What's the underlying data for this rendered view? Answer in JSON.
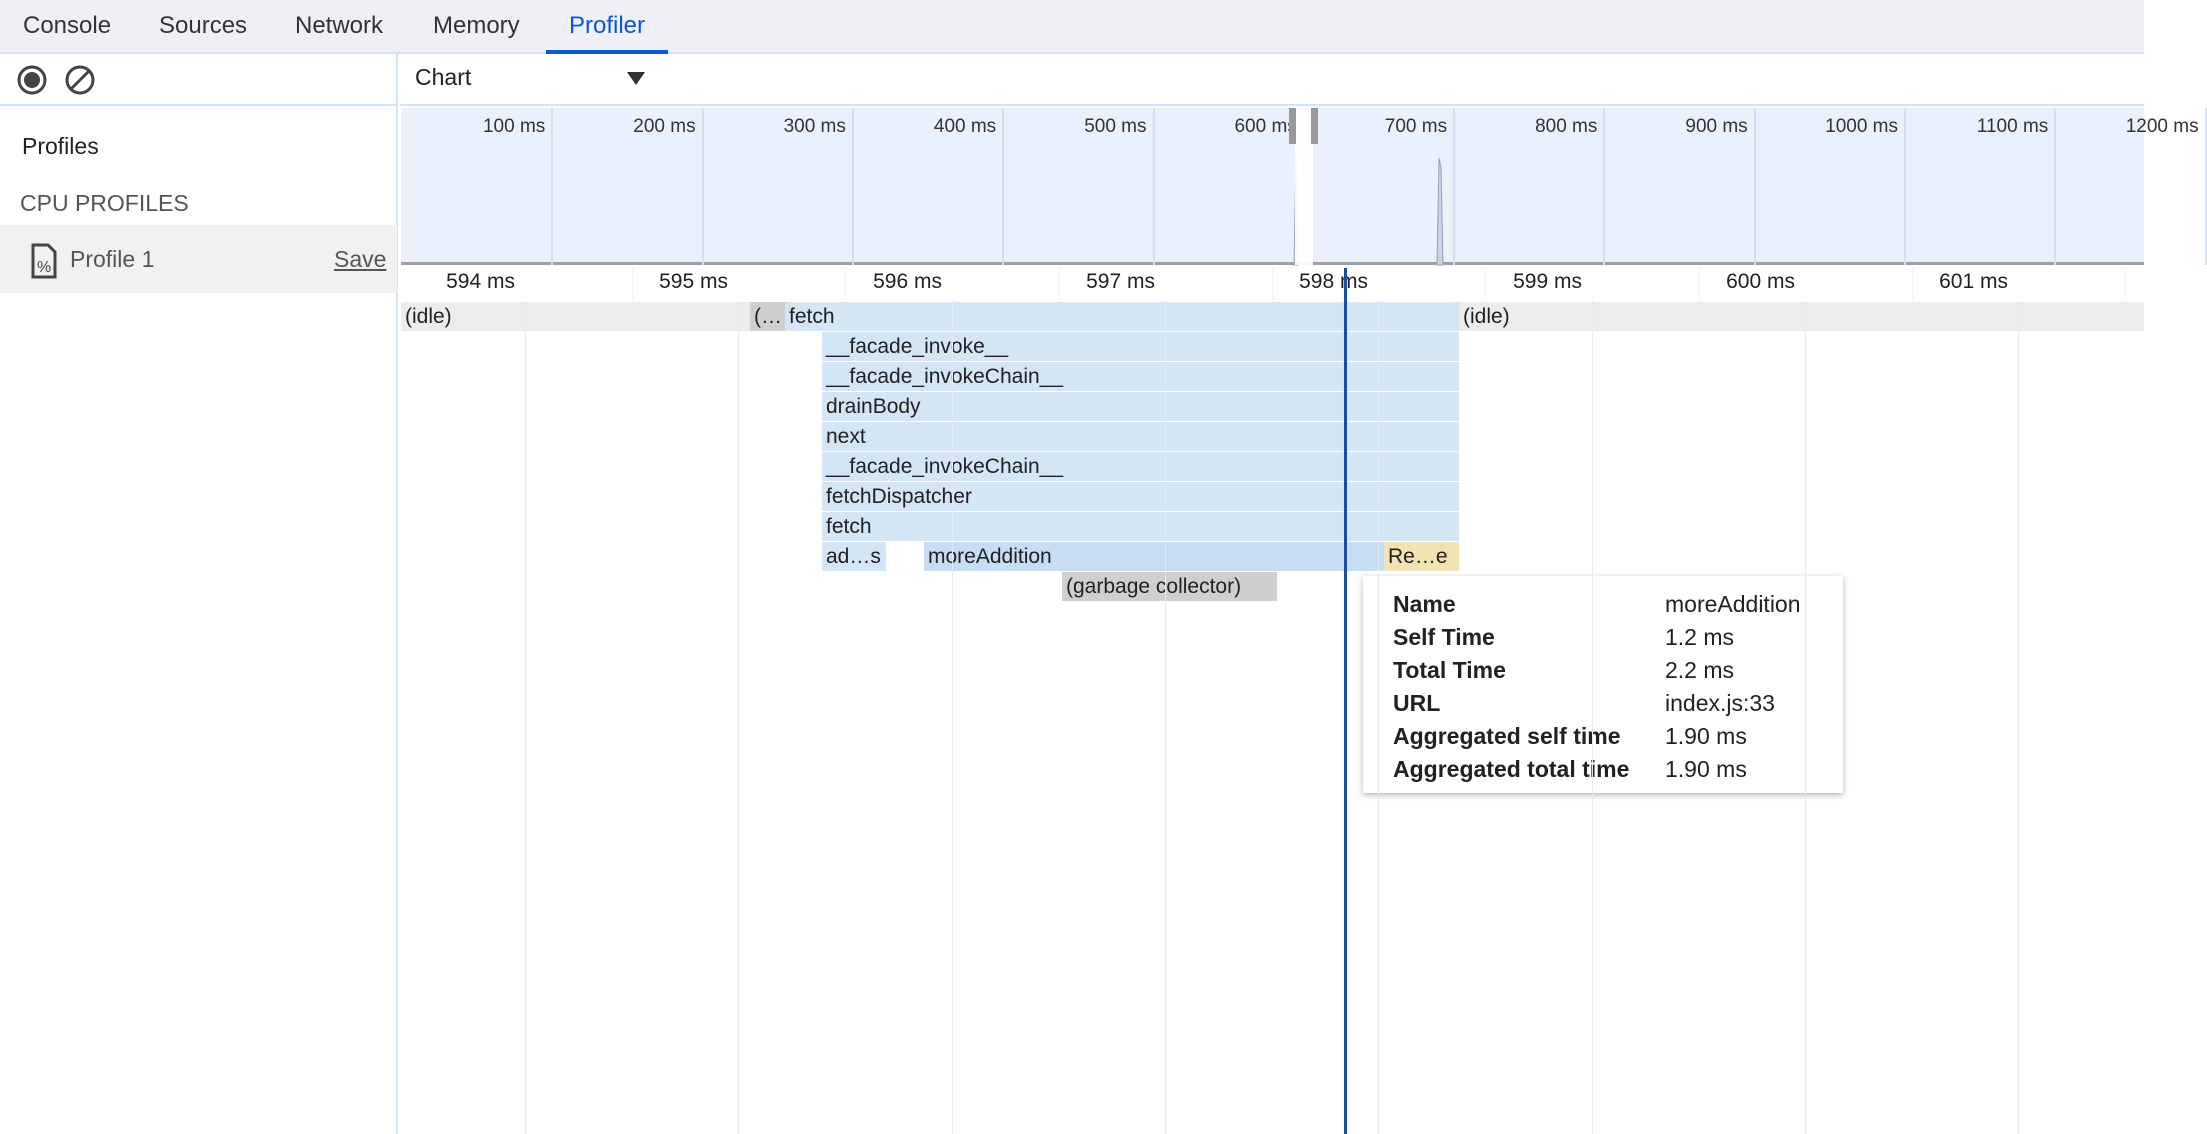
{
  "tabs": [
    {
      "label": "Console"
    },
    {
      "label": "Sources"
    },
    {
      "label": "Network"
    },
    {
      "label": "Memory"
    },
    {
      "label": "Profiler",
      "active": true
    }
  ],
  "toolbar": {
    "record_icon": "record-icon",
    "clear_icon": "clear-icon",
    "view_select": "Chart"
  },
  "sidebar": {
    "title": "Profiles",
    "section": "CPU PROFILES",
    "profile": {
      "name": "Profile 1",
      "save": "Save",
      "icon": "profile-file-icon"
    }
  },
  "overview": {
    "ticks": [
      "100 ms",
      "200 ms",
      "300 ms",
      "400 ms",
      "500 ms",
      "600 ms",
      "700 ms",
      "800 ms",
      "900 ms",
      "1000 ms",
      "1100 ms",
      "1200 ms"
    ]
  },
  "ruler": {
    "ticks": [
      "594 ms",
      "595 ms",
      "596 ms",
      "597 ms",
      "598 ms",
      "599 ms",
      "600 ms",
      "601 ms"
    ]
  },
  "flame": {
    "row0": [
      "(idle)",
      "(…",
      "fetch",
      "(idle)"
    ],
    "stack": [
      "__facade_invoke__",
      "__facade_invokeChain__",
      "drainBody",
      "next",
      "__facade_invokeChain__",
      "fetchDispatcher",
      "fetch"
    ],
    "row8": [
      "ad…s",
      "moreAddition",
      "Re…e"
    ],
    "row9": [
      "(garbage collector)"
    ]
  },
  "tooltip": [
    {
      "k": "Name",
      "v": "moreAddition"
    },
    {
      "k": "Self Time",
      "v": "1.2 ms"
    },
    {
      "k": "Total Time",
      "v": "2.2 ms"
    },
    {
      "k": "URL",
      "v": "index.js:33"
    },
    {
      "k": "Aggregated self time",
      "v": "1.90 ms"
    },
    {
      "k": "Aggregated total time",
      "v": "1.90 ms"
    }
  ],
  "colors": {
    "accent": "#0b57d0",
    "cursor": "#1a4fa0"
  }
}
